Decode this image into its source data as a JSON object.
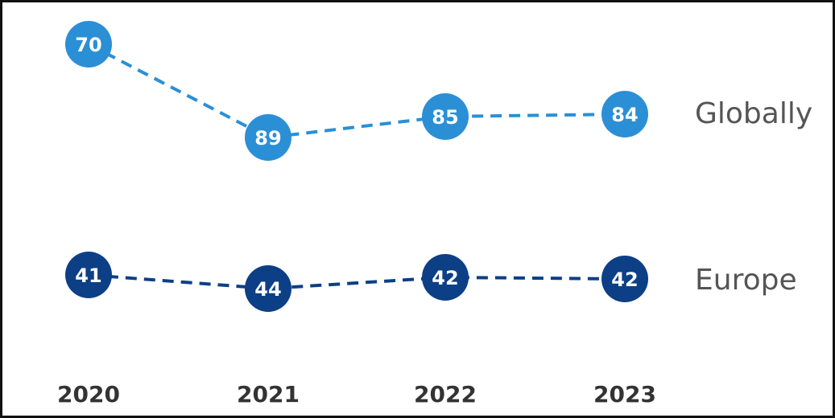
{
  "chart_data": {
    "type": "line",
    "title": "",
    "xlabel": "",
    "ylabel": "",
    "categories": [
      "2020",
      "2021",
      "2022",
      "2023"
    ],
    "series": [
      {
        "name": "Globally",
        "values": [
          70,
          89,
          85,
          84
        ],
        "color": "#2b8fd6"
      },
      {
        "name": "Europe",
        "values": [
          41,
          44,
          42,
          42
        ],
        "color": "#0d3f86"
      }
    ],
    "line_style": "dashed",
    "markers": "filled circles with value labels",
    "grid": false,
    "legend": "series names at right end of lines"
  }
}
